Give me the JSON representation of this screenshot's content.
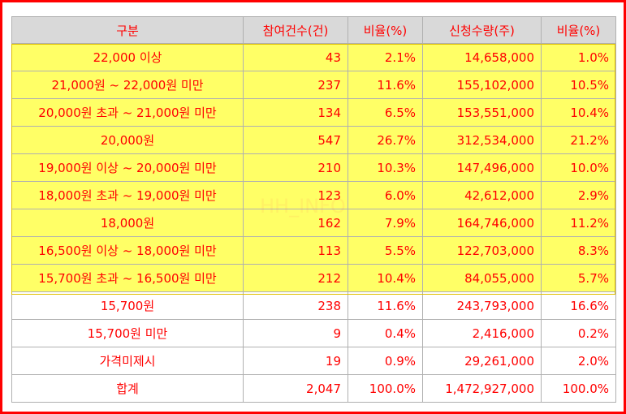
{
  "table": {
    "headers": [
      "구분",
      "참여건수(건)",
      "비율(%)",
      "신청수량(주)",
      "비율(%)"
    ],
    "highlight_color": "#ffff66",
    "text_color": "#ff0000",
    "rows": [
      {
        "category": "22,000 이상",
        "count": "43",
        "count_pct": "2.1%",
        "qty": "14,658,000",
        "qty_pct": "1.0%",
        "highlight": true
      },
      {
        "category": "21,000원 ~ 22,000원 미만",
        "count": "237",
        "count_pct": "11.6%",
        "qty": "155,102,000",
        "qty_pct": "10.5%",
        "highlight": true
      },
      {
        "category": "20,000원 초과 ~ 21,000원 미만",
        "count": "134",
        "count_pct": "6.5%",
        "qty": "153,551,000",
        "qty_pct": "10.4%",
        "highlight": true
      },
      {
        "category": "20,000원",
        "count": "547",
        "count_pct": "26.7%",
        "qty": "312,534,000",
        "qty_pct": "21.2%",
        "highlight": true
      },
      {
        "category": "19,000원 이상 ~ 20,000원 미만",
        "count": "210",
        "count_pct": "10.3%",
        "qty": "147,496,000",
        "qty_pct": "10.0%",
        "highlight": true
      },
      {
        "category": "18,000원 초과 ~ 19,000원 미만",
        "count": "123",
        "count_pct": "6.0%",
        "qty": "42,612,000",
        "qty_pct": "2.9%",
        "highlight": true
      },
      {
        "category": "18,000원",
        "count": "162",
        "count_pct": "7.9%",
        "qty": "164,746,000",
        "qty_pct": "11.2%",
        "highlight": true
      },
      {
        "category": "16,500원 이상 ~ 18,000원 미만",
        "count": "113",
        "count_pct": "5.5%",
        "qty": "122,703,000",
        "qty_pct": "8.3%",
        "highlight": true
      },
      {
        "category": "15,700원 초과 ~ 16,500원 미만",
        "count": "212",
        "count_pct": "10.4%",
        "qty": "84,055,000",
        "qty_pct": "5.7%",
        "highlight": true
      },
      {
        "category": "15,700원",
        "count": "238",
        "count_pct": "11.6%",
        "qty": "243,793,000",
        "qty_pct": "16.6%",
        "highlight": false
      },
      {
        "category": "15,700원 미만",
        "count": "9",
        "count_pct": "0.4%",
        "qty": "2,416,000",
        "qty_pct": "0.2%",
        "highlight": false
      },
      {
        "category": "가격미제시",
        "count": "19",
        "count_pct": "0.9%",
        "qty": "29,261,000",
        "qty_pct": "2.0%",
        "highlight": false
      },
      {
        "category": "합계",
        "count": "2,047",
        "count_pct": "100.0%",
        "qty": "1,472,927,000",
        "qty_pct": "100.0%",
        "highlight": false
      }
    ]
  },
  "watermark": "HH_INFO"
}
